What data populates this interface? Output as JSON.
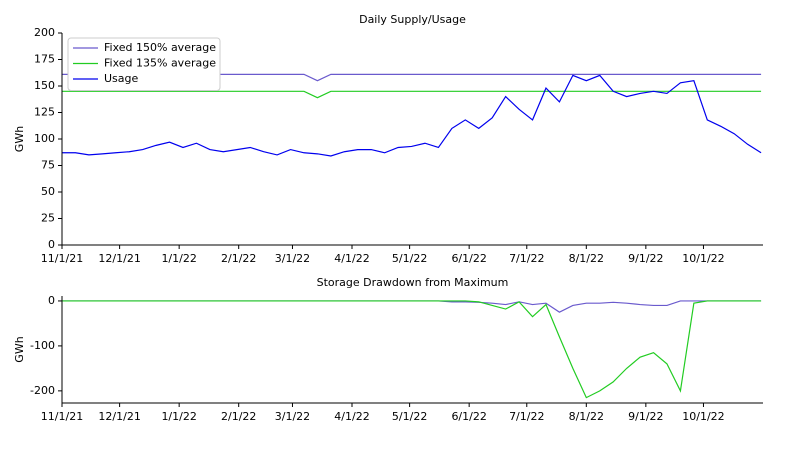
{
  "chart_data": [
    {
      "type": "line",
      "title": "Daily Supply/Usage",
      "ylabel": "GWh",
      "x": [
        "11/1/21",
        "11/8/21",
        "11/15/21",
        "11/22/21",
        "11/29/21",
        "12/6/21",
        "12/13/21",
        "12/20/21",
        "12/27/21",
        "1/3/22",
        "1/10/22",
        "1/17/22",
        "1/24/22",
        "1/31/22",
        "2/7/22",
        "2/14/22",
        "2/21/22",
        "2/28/22",
        "3/7/22",
        "3/14/22",
        "3/21/22",
        "3/28/22",
        "4/4/22",
        "4/11/22",
        "4/18/22",
        "4/25/22",
        "5/2/22",
        "5/9/22",
        "5/16/22",
        "5/23/22",
        "5/30/22",
        "6/6/22",
        "6/13/22",
        "6/20/22",
        "6/27/22",
        "7/4/22",
        "7/11/22",
        "7/18/22",
        "7/25/22",
        "8/1/22",
        "8/8/22",
        "8/15/22",
        "8/22/22",
        "8/29/22",
        "9/5/22",
        "9/12/22",
        "9/19/22",
        "9/26/22",
        "10/3/22",
        "10/10/22",
        "10/17/22",
        "10/24/22",
        "10/31/22"
      ],
      "series": [
        {
          "name": "Fixed 150% average",
          "color": "#6a5acd",
          "values": [
            161,
            161,
            161,
            161,
            161,
            161,
            161,
            161,
            161,
            161,
            161,
            161,
            161,
            161,
            161,
            161,
            161,
            161,
            161,
            155,
            161,
            161,
            161,
            161,
            161,
            161,
            161,
            161,
            161,
            161,
            161,
            161,
            161,
            161,
            161,
            161,
            161,
            161,
            161,
            161,
            161,
            161,
            161,
            161,
            161,
            161,
            161,
            161,
            161,
            161,
            161,
            161,
            161
          ]
        },
        {
          "name": "Fixed 135% average",
          "color": "#22cc22",
          "values": [
            145,
            145,
            145,
            145,
            145,
            145,
            145,
            145,
            145,
            145,
            145,
            145,
            145,
            145,
            145,
            145,
            145,
            145,
            145,
            139,
            145,
            145,
            145,
            145,
            145,
            145,
            145,
            145,
            145,
            145,
            145,
            145,
            145,
            145,
            145,
            145,
            145,
            145,
            145,
            145,
            145,
            145,
            145,
            145,
            145,
            145,
            145,
            145,
            145,
            145,
            145,
            145,
            145
          ]
        },
        {
          "name": "Usage",
          "color": "#0000ee",
          "values": [
            87,
            87,
            85,
            86,
            87,
            88,
            90,
            94,
            97,
            92,
            96,
            90,
            88,
            90,
            92,
            88,
            85,
            90,
            87,
            86,
            84,
            88,
            90,
            90,
            87,
            92,
            93,
            96,
            92,
            110,
            118,
            110,
            120,
            140,
            128,
            118,
            148,
            135,
            160,
            155,
            160,
            145,
            140,
            143,
            145,
            143,
            153,
            155,
            118,
            112,
            105,
            95,
            87
          ]
        }
      ],
      "xlim": [
        "11/1/21",
        "11/1/22"
      ],
      "ylim": [
        0,
        200
      ],
      "xticks": [
        "11/1/21",
        "12/1/21",
        "1/1/22",
        "2/1/22",
        "3/1/22",
        "4/1/22",
        "5/1/22",
        "6/1/22",
        "7/1/22",
        "8/1/22",
        "9/1/22",
        "10/1/22"
      ],
      "yticks": [
        0,
        25,
        50,
        75,
        100,
        125,
        150,
        175,
        200
      ],
      "legend": "upper left"
    },
    {
      "type": "line",
      "title": "Storage Drawdown from Maximum",
      "ylabel": "GWh",
      "x": [
        "11/1/21",
        "11/8/21",
        "11/15/21",
        "11/22/21",
        "11/29/21",
        "12/6/21",
        "12/13/21",
        "12/20/21",
        "12/27/21",
        "1/3/22",
        "1/10/22",
        "1/17/22",
        "1/24/22",
        "1/31/22",
        "2/7/22",
        "2/14/22",
        "2/21/22",
        "2/28/22",
        "3/7/22",
        "3/14/22",
        "3/21/22",
        "3/28/22",
        "4/4/22",
        "4/11/22",
        "4/18/22",
        "4/25/22",
        "5/2/22",
        "5/9/22",
        "5/16/22",
        "5/23/22",
        "5/30/22",
        "6/6/22",
        "6/13/22",
        "6/20/22",
        "6/27/22",
        "7/4/22",
        "7/11/22",
        "7/18/22",
        "7/25/22",
        "8/1/22",
        "8/8/22",
        "8/15/22",
        "8/22/22",
        "8/29/22",
        "9/5/22",
        "9/12/22",
        "9/19/22",
        "9/26/22",
        "10/3/22",
        "10/10/22",
        "10/17/22",
        "10/24/22",
        "10/31/22"
      ],
      "series": [
        {
          "color": "#6a5acd",
          "values": [
            0,
            0,
            0,
            0,
            0,
            0,
            0,
            0,
            0,
            0,
            0,
            0,
            0,
            0,
            0,
            0,
            0,
            0,
            0,
            0,
            0,
            0,
            0,
            0,
            0,
            0,
            0,
            0,
            0,
            -2,
            -2,
            -3,
            -5,
            -8,
            -2,
            -8,
            -5,
            -25,
            -10,
            -5,
            -5,
            -3,
            -5,
            -8,
            -10,
            -10,
            0,
            0,
            0,
            0,
            0,
            0,
            0
          ]
        },
        {
          "color": "#22cc22",
          "values": [
            0,
            0,
            0,
            0,
            0,
            0,
            0,
            0,
            0,
            0,
            0,
            0,
            0,
            0,
            0,
            0,
            0,
            0,
            0,
            0,
            0,
            0,
            0,
            0,
            0,
            0,
            0,
            0,
            0,
            0,
            0,
            -2,
            -10,
            -18,
            -2,
            -35,
            -8,
            -80,
            -150,
            -215,
            -200,
            -180,
            -150,
            -125,
            -115,
            -140,
            -200,
            -5,
            0,
            0,
            0,
            0,
            0
          ]
        }
      ],
      "xlim": [
        "11/1/21",
        "11/1/22"
      ],
      "ylim": [
        -227,
        11
      ],
      "xticks": [
        "11/1/21",
        "12/1/21",
        "1/1/22",
        "2/1/22",
        "3/1/22",
        "4/1/22",
        "5/1/22",
        "6/1/22",
        "7/1/22",
        "8/1/22",
        "9/1/22",
        "10/1/22"
      ],
      "yticks": [
        0,
        -100,
        -200
      ]
    }
  ]
}
